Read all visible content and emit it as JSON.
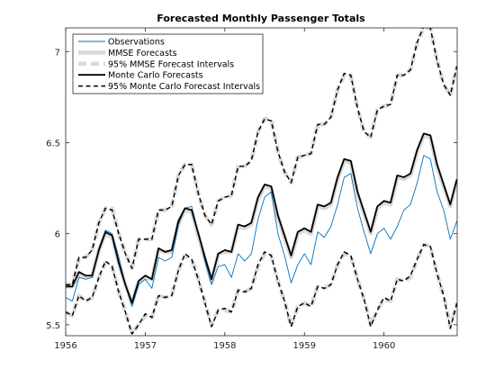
{
  "chart_data": {
    "type": "line",
    "title": "Forecasted Monthly Passenger Totals",
    "xlabel": "",
    "ylabel": "",
    "xlim": [
      1956,
      1960.92
    ],
    "ylim": [
      5.44,
      7.13
    ],
    "xticks": [
      1956,
      1957,
      1958,
      1959,
      1960
    ],
    "xtick_labels": [
      "1956",
      "1957",
      "1958",
      "1959",
      "1960"
    ],
    "yticks": [
      5.5,
      6,
      6.5,
      7
    ],
    "ytick_labels": [
      "5.5",
      "6",
      "6.5",
      "7"
    ],
    "grid": false,
    "legend_position": "top-left",
    "legend": [
      "Observations",
      "MMSE Forecasts",
      "95% MMSE Forecast Intervals",
      "Monte Carlo Forecasts",
      "95% Monte Carlo Forecast Intervals"
    ],
    "x": [
      1956.0,
      1956.083,
      1956.167,
      1956.25,
      1956.333,
      1956.417,
      1956.5,
      1956.583,
      1956.667,
      1956.75,
      1956.833,
      1956.917,
      1957.0,
      1957.083,
      1957.167,
      1957.25,
      1957.333,
      1957.417,
      1957.5,
      1957.583,
      1957.667,
      1957.75,
      1957.833,
      1957.917,
      1958.0,
      1958.083,
      1958.167,
      1958.25,
      1958.333,
      1958.417,
      1958.5,
      1958.583,
      1958.667,
      1958.75,
      1958.833,
      1958.917,
      1959.0,
      1959.083,
      1959.167,
      1959.25,
      1959.333,
      1959.417,
      1959.5,
      1959.583,
      1959.667,
      1959.75,
      1959.833,
      1959.917,
      1960.0,
      1960.083,
      1960.167,
      1960.25,
      1960.333,
      1960.417,
      1960.5,
      1960.583,
      1960.667,
      1960.75,
      1960.833,
      1960.917
    ],
    "series": [
      {
        "name": "Observations",
        "color": "#0072bd",
        "style": "solid",
        "values": [
          5.65,
          5.63,
          5.76,
          5.75,
          5.76,
          5.92,
          6.02,
          6.0,
          5.87,
          5.72,
          5.6,
          5.72,
          5.75,
          5.7,
          5.87,
          5.85,
          5.87,
          6.05,
          6.14,
          6.15,
          6.0,
          5.85,
          5.72,
          5.82,
          5.83,
          5.76,
          5.89,
          5.85,
          5.89,
          6.08,
          6.2,
          6.23,
          6.0,
          5.88,
          5.73,
          5.83,
          5.89,
          5.83,
          6.01,
          5.98,
          6.04,
          6.16,
          6.31,
          6.33,
          6.14,
          6.01,
          5.89,
          6.0,
          6.03,
          5.97,
          6.04,
          6.13,
          6.16,
          6.28,
          6.43,
          6.41,
          6.23,
          6.13,
          5.97,
          6.07
        ]
      },
      {
        "name": "MMSE Forecasts",
        "color": "#d9d9d9",
        "style": "thick",
        "values": [
          5.71,
          5.71,
          5.78,
          5.76,
          5.77,
          5.91,
          6.0,
          5.98,
          5.84,
          5.72,
          5.62,
          5.74,
          5.76,
          5.75,
          5.91,
          5.9,
          5.9,
          6.06,
          6.13,
          6.12,
          5.99,
          5.86,
          5.74,
          5.89,
          5.9,
          5.9,
          6.04,
          6.03,
          6.05,
          6.19,
          6.26,
          6.25,
          6.09,
          5.98,
          5.87,
          6.0,
          6.02,
          6.0,
          6.15,
          6.14,
          6.16,
          6.3,
          6.4,
          6.39,
          6.22,
          6.11,
          6.0,
          6.14,
          6.17,
          6.16,
          6.31,
          6.3,
          6.32,
          6.45,
          6.54,
          6.53,
          6.37,
          6.26,
          6.15,
          6.29
        ]
      },
      {
        "name": "95% MMSE Forecast Intervals (upper)",
        "color": "#d9d9d9",
        "style": "thick-dashed",
        "values": [
          5.72,
          5.72,
          5.87,
          5.87,
          5.91,
          6.06,
          6.14,
          6.14,
          6.0,
          5.89,
          5.81,
          5.97,
          5.97,
          5.97,
          6.13,
          6.13,
          6.15,
          6.32,
          6.38,
          6.38,
          6.22,
          6.1,
          6.05,
          6.18,
          6.2,
          6.21,
          6.37,
          6.37,
          6.4,
          6.56,
          6.63,
          6.63,
          6.45,
          6.34,
          6.28,
          6.42,
          6.43,
          6.44,
          6.6,
          6.6,
          6.64,
          6.79,
          6.87,
          6.87,
          6.69,
          6.56,
          6.53,
          6.68,
          6.7,
          6.71,
          6.87,
          6.87,
          6.9,
          7.05,
          7.13,
          7.13,
          6.95,
          6.82,
          6.76,
          6.92
        ]
      },
      {
        "name": "95% MMSE Forecast Intervals (lower)",
        "color": "#d9d9d9",
        "style": "thick-dashed",
        "values": [
          5.57,
          5.55,
          5.66,
          5.63,
          5.65,
          5.76,
          5.84,
          5.82,
          5.68,
          5.57,
          5.45,
          5.5,
          5.55,
          5.54,
          5.66,
          5.65,
          5.66,
          5.8,
          5.88,
          5.86,
          5.75,
          5.62,
          5.5,
          5.58,
          5.58,
          5.57,
          5.69,
          5.68,
          5.7,
          5.82,
          5.89,
          5.88,
          5.74,
          5.63,
          5.49,
          5.6,
          5.62,
          5.6,
          5.71,
          5.7,
          5.72,
          5.83,
          5.89,
          5.88,
          5.75,
          5.64,
          5.5,
          5.58,
          5.64,
          5.63,
          5.75,
          5.74,
          5.76,
          5.86,
          5.94,
          5.93,
          5.78,
          5.66,
          5.49,
          5.62
        ]
      },
      {
        "name": "Monte Carlo Forecasts",
        "color": "#000000",
        "style": "solid-bold",
        "values": [
          5.71,
          5.71,
          5.79,
          5.77,
          5.77,
          5.91,
          6.01,
          5.99,
          5.84,
          5.72,
          5.62,
          5.74,
          5.77,
          5.75,
          5.92,
          5.9,
          5.91,
          6.07,
          6.14,
          6.13,
          6.0,
          5.87,
          5.75,
          5.89,
          5.91,
          5.9,
          6.05,
          6.04,
          6.06,
          6.2,
          6.27,
          6.26,
          6.1,
          5.99,
          5.88,
          6.01,
          6.03,
          6.01,
          6.16,
          6.15,
          6.17,
          6.31,
          6.41,
          6.4,
          6.23,
          6.12,
          6.01,
          6.15,
          6.18,
          6.17,
          6.32,
          6.31,
          6.33,
          6.46,
          6.55,
          6.54,
          6.38,
          6.27,
          6.16,
          6.3
        ]
      },
      {
        "name": "95% Monte Carlo Forecast Intervals (upper)",
        "color": "#000000",
        "style": "dashed",
        "values": [
          5.72,
          5.72,
          5.87,
          5.87,
          5.91,
          6.06,
          6.14,
          6.13,
          6.0,
          5.89,
          5.81,
          5.97,
          5.97,
          5.97,
          6.13,
          6.13,
          6.15,
          6.32,
          6.38,
          6.38,
          6.22,
          6.1,
          6.05,
          6.18,
          6.2,
          6.21,
          6.37,
          6.37,
          6.4,
          6.56,
          6.63,
          6.62,
          6.45,
          6.34,
          6.28,
          6.42,
          6.43,
          6.44,
          6.6,
          6.6,
          6.64,
          6.79,
          6.88,
          6.87,
          6.69,
          6.56,
          6.53,
          6.68,
          6.7,
          6.71,
          6.87,
          6.87,
          6.9,
          7.05,
          7.14,
          7.13,
          6.95,
          6.82,
          6.76,
          6.92
        ]
      },
      {
        "name": "95% Monte Carlo Forecast Intervals (lower)",
        "color": "#000000",
        "style": "dashed",
        "values": [
          5.57,
          5.55,
          5.66,
          5.63,
          5.65,
          5.76,
          5.85,
          5.82,
          5.68,
          5.57,
          5.45,
          5.5,
          5.56,
          5.54,
          5.66,
          5.65,
          5.66,
          5.8,
          5.89,
          5.86,
          5.75,
          5.62,
          5.49,
          5.58,
          5.59,
          5.57,
          5.69,
          5.68,
          5.7,
          5.83,
          5.9,
          5.88,
          5.74,
          5.63,
          5.49,
          5.6,
          5.62,
          5.6,
          5.71,
          5.7,
          5.72,
          5.83,
          5.9,
          5.88,
          5.75,
          5.64,
          5.49,
          5.58,
          5.65,
          5.63,
          5.75,
          5.74,
          5.77,
          5.86,
          5.94,
          5.93,
          5.78,
          5.66,
          5.48,
          5.62
        ]
      }
    ]
  }
}
